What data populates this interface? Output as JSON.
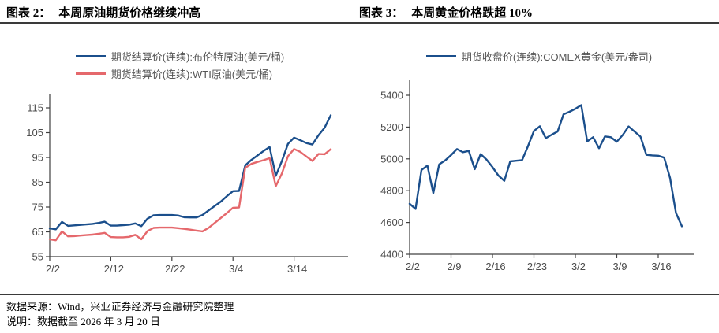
{
  "chart_data": [
    {
      "type": "line",
      "title": "图表 2：本周原油期货价格继续冲高",
      "title_prefix": "图表 2：",
      "title_main": "本周原油期货价格继续冲高",
      "legend_position": "top",
      "grid": false,
      "ylim": [
        55,
        115
      ],
      "y_ticks": [
        55,
        65,
        75,
        85,
        95,
        105,
        115
      ],
      "x_tick_labels": [
        "2/2",
        "2/12",
        "2/22",
        "3/4",
        "3/14"
      ],
      "x_tick_indices": [
        0,
        10,
        20,
        30,
        40
      ],
      "x_range_days": "2/2 - 3/20",
      "n_points": 47,
      "series": [
        {
          "name": "期货结算价(连续):布伦特原油(美元/桶)",
          "color": "#1b4f8c",
          "values": [
            66.4,
            66,
            69,
            67.4,
            67.6,
            67.8,
            68,
            68.2,
            68.6,
            69.1,
            67.5,
            67.5,
            67.7,
            67.9,
            68.4,
            67.3,
            70.3,
            71.7,
            71.8,
            71.8,
            71.8,
            71.6,
            70.9,
            70.8,
            70.8,
            71.8,
            73.6,
            75.4,
            77.2,
            79.4,
            81.4,
            81.5,
            91.8,
            94,
            95.8,
            97.6,
            99.2,
            87.6,
            93.5,
            100.5,
            103,
            102,
            100.8,
            100.2,
            104,
            107,
            112
          ]
        },
        {
          "name": "期货结算价(连续):WTI原油(美元/桶)",
          "color": "#e5686c",
          "values": [
            62,
            61.6,
            65.2,
            63.2,
            63.3,
            63.5,
            63.7,
            63.9,
            64.2,
            64.6,
            62.9,
            62.8,
            62.8,
            63,
            63.8,
            62,
            65.3,
            66.6,
            66.7,
            66.7,
            66.7,
            66.5,
            66.2,
            65.9,
            65.5,
            65.2,
            66.6,
            68.6,
            70.6,
            72.6,
            74.7,
            74.8,
            90.8,
            92.4,
            93.2,
            93.9,
            94.7,
            83.4,
            88.5,
            95.5,
            98.4,
            97.3,
            95.4,
            93.6,
            96.4,
            96.3,
            98.3
          ]
        }
      ]
    },
    {
      "type": "line",
      "title": "图表 3：本周黄金价格跌超 10%",
      "title_prefix": "图表 3：",
      "title_main": "本周黄金价格跌超 10%",
      "legend_position": "top",
      "grid": false,
      "ylim": [
        4400,
        5400
      ],
      "y_ticks": [
        4400,
        4600,
        4800,
        5000,
        5200,
        5400
      ],
      "x_tick_labels": [
        "2/2",
        "2/9",
        "2/16",
        "2/23",
        "3/2",
        "3/9",
        "3/16"
      ],
      "x_tick_indices": [
        0,
        7,
        14,
        21,
        28,
        35,
        42
      ],
      "x_range_days": "2/2 - 3/20",
      "n_points": 47,
      "series": [
        {
          "name": "期货收盘价(连续):COMEX黄金(美元/盎司)",
          "color": "#1b4f8c",
          "values": [
            4718,
            4685,
            4930,
            4958,
            4785,
            4966,
            4990,
            5024,
            5062,
            5042,
            5050,
            4935,
            5030,
            4995,
            4948,
            4895,
            4862,
            4984,
            4988,
            4992,
            5080,
            5175,
            5205,
            5130,
            5152,
            5172,
            5280,
            5296,
            5315,
            5338,
            5110,
            5136,
            5067,
            5141,
            5136,
            5108,
            5150,
            5204,
            5172,
            5140,
            5025,
            5022,
            5020,
            5008,
            4880,
            4660,
            4576
          ]
        }
      ]
    }
  ],
  "style": {
    "axis_color": "#404040",
    "tick_label_color": "#4c4c4c",
    "rule_color": "#3a3a3a"
  },
  "footer": {
    "source_line": "数据来源：Wind，兴业证券经济与金融研究院整理",
    "note_line": "说明：数据截至 2026 年 3 月 20 日"
  }
}
